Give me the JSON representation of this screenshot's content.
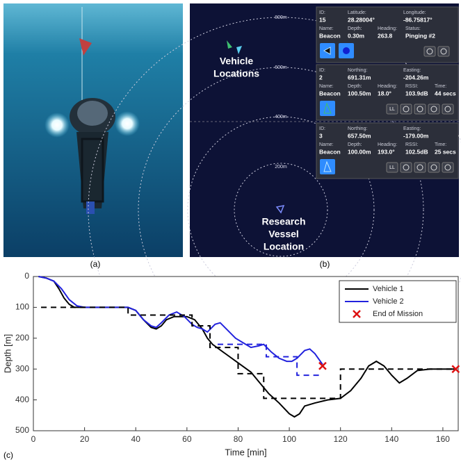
{
  "panel_labels": [
    "(a)",
    "(b)",
    "(c)"
  ],
  "panel_b": {
    "range_labels": [
      "800m",
      "600m",
      "400m",
      "200m"
    ],
    "annotations": [
      [
        "Vehicle",
        "Locations"
      ],
      [
        "Research",
        "Vessel",
        "Location"
      ]
    ],
    "button_text": "LL",
    "cards": [
      {
        "rows": [
          [
            {
              "label": "ID:",
              "value": "15"
            },
            {
              "label": "Latitude:",
              "value": "28.28004°"
            },
            {
              "label": "Longitude:",
              "value": "-86.75817°"
            }
          ],
          [
            {
              "label": "Name:",
              "value": "Beacon"
            },
            {
              "label": "Depth:",
              "value": "0.30m"
            },
            {
              "label": "Heading:",
              "value": "263.8"
            },
            {
              "label": "Status:",
              "value": "Pinging #2"
            }
          ]
        ]
      },
      {
        "rows": [
          [
            {
              "label": "ID:",
              "value": "2"
            },
            {
              "label": "Northing:",
              "value": "691.31m"
            },
            {
              "label": "Easting:",
              "value": "-204.26m"
            }
          ],
          [
            {
              "label": "Name:",
              "value": "Beacon"
            },
            {
              "label": "Depth:",
              "value": "100.50m"
            },
            {
              "label": "Heading:",
              "value": "18.0°"
            },
            {
              "label": "RSSI:",
              "value": "103.9dB"
            },
            {
              "label": "Time:",
              "value": "44 secs"
            }
          ]
        ]
      },
      {
        "rows": [
          [
            {
              "label": "ID:",
              "value": "3"
            },
            {
              "label": "Northing:",
              "value": "657.50m"
            },
            {
              "label": "Easting:",
              "value": "-179.00m"
            }
          ],
          [
            {
              "label": "Name:",
              "value": "Beacon"
            },
            {
              "label": "Depth:",
              "value": "100.00m"
            },
            {
              "label": "Heading:",
              "value": "193.0°"
            },
            {
              "label": "RSSI:",
              "value": "102.5dB"
            },
            {
              "label": "Time:",
              "value": "25 secs"
            }
          ]
        ]
      }
    ]
  },
  "chart_data": {
    "type": "line",
    "x_label": "Time [min]",
    "y_label": "Depth [m]",
    "xlim": [
      0,
      166
    ],
    "ylim": [
      0,
      500
    ],
    "y_inverted": true,
    "xticks": [
      0,
      20,
      40,
      60,
      80,
      100,
      120,
      140,
      160
    ],
    "yticks": [
      0,
      100,
      200,
      300,
      400,
      500
    ],
    "grid": false,
    "legend": "upper right",
    "series": [
      {
        "name": "Vehicle 1",
        "color": "#000000",
        "x": [
          2,
          5,
          8,
          10,
          12,
          14,
          16,
          20,
          30,
          37,
          40,
          43,
          46,
          48,
          50,
          52,
          55,
          60,
          63,
          66,
          68,
          70,
          75,
          80,
          85,
          88,
          92,
          96,
          100,
          102,
          104,
          106,
          110,
          115,
          120,
          124,
          128,
          131,
          134,
          137,
          140,
          143,
          146,
          150,
          155,
          165
        ],
        "values": [
          0,
          5,
          15,
          40,
          70,
          90,
          100,
          100,
          100,
          100,
          110,
          140,
          165,
          170,
          160,
          140,
          130,
          130,
          140,
          170,
          200,
          220,
          250,
          280,
          310,
          340,
          380,
          410,
          445,
          455,
          445,
          420,
          410,
          400,
          395,
          370,
          330,
          290,
          275,
          290,
          320,
          345,
          330,
          305,
          300,
          300
        ]
      },
      {
        "name": "Vehicle 2",
        "color": "#2222dd",
        "x": [
          2,
          5,
          8,
          11,
          14,
          17,
          20,
          37,
          40,
          43,
          46,
          48,
          50,
          53,
          56,
          59,
          62,
          64,
          66,
          68,
          71,
          73,
          76,
          79,
          82,
          85,
          88,
          90,
          93,
          96,
          99,
          101,
          103,
          106,
          108,
          110,
          113
        ],
        "values": [
          0,
          5,
          15,
          40,
          75,
          95,
          100,
          100,
          110,
          140,
          160,
          165,
          150,
          125,
          115,
          130,
          155,
          165,
          170,
          180,
          155,
          150,
          175,
          200,
          215,
          230,
          225,
          220,
          245,
          265,
          275,
          275,
          265,
          240,
          235,
          250,
          285
        ]
      },
      {
        "color": "#000000",
        "dash": true,
        "x": [
          3,
          37,
          37,
          62,
          62,
          69,
          69,
          80,
          80,
          90,
          90,
          120,
          120,
          165
        ],
        "values": [
          100,
          100,
          125,
          125,
          160,
          160,
          230,
          230,
          315,
          315,
          395,
          395,
          300,
          300
        ]
      },
      {
        "color": "#2222dd",
        "dash": true,
        "x": [
          72,
          91,
          91,
          103,
          103,
          112
        ],
        "values": [
          220,
          220,
          260,
          260,
          320,
          320
        ]
      },
      {
        "name": "End of Mission",
        "color": "#dd1111",
        "marker": "x",
        "x": [
          113,
          165
        ],
        "values": [
          290,
          300
        ]
      }
    ]
  }
}
